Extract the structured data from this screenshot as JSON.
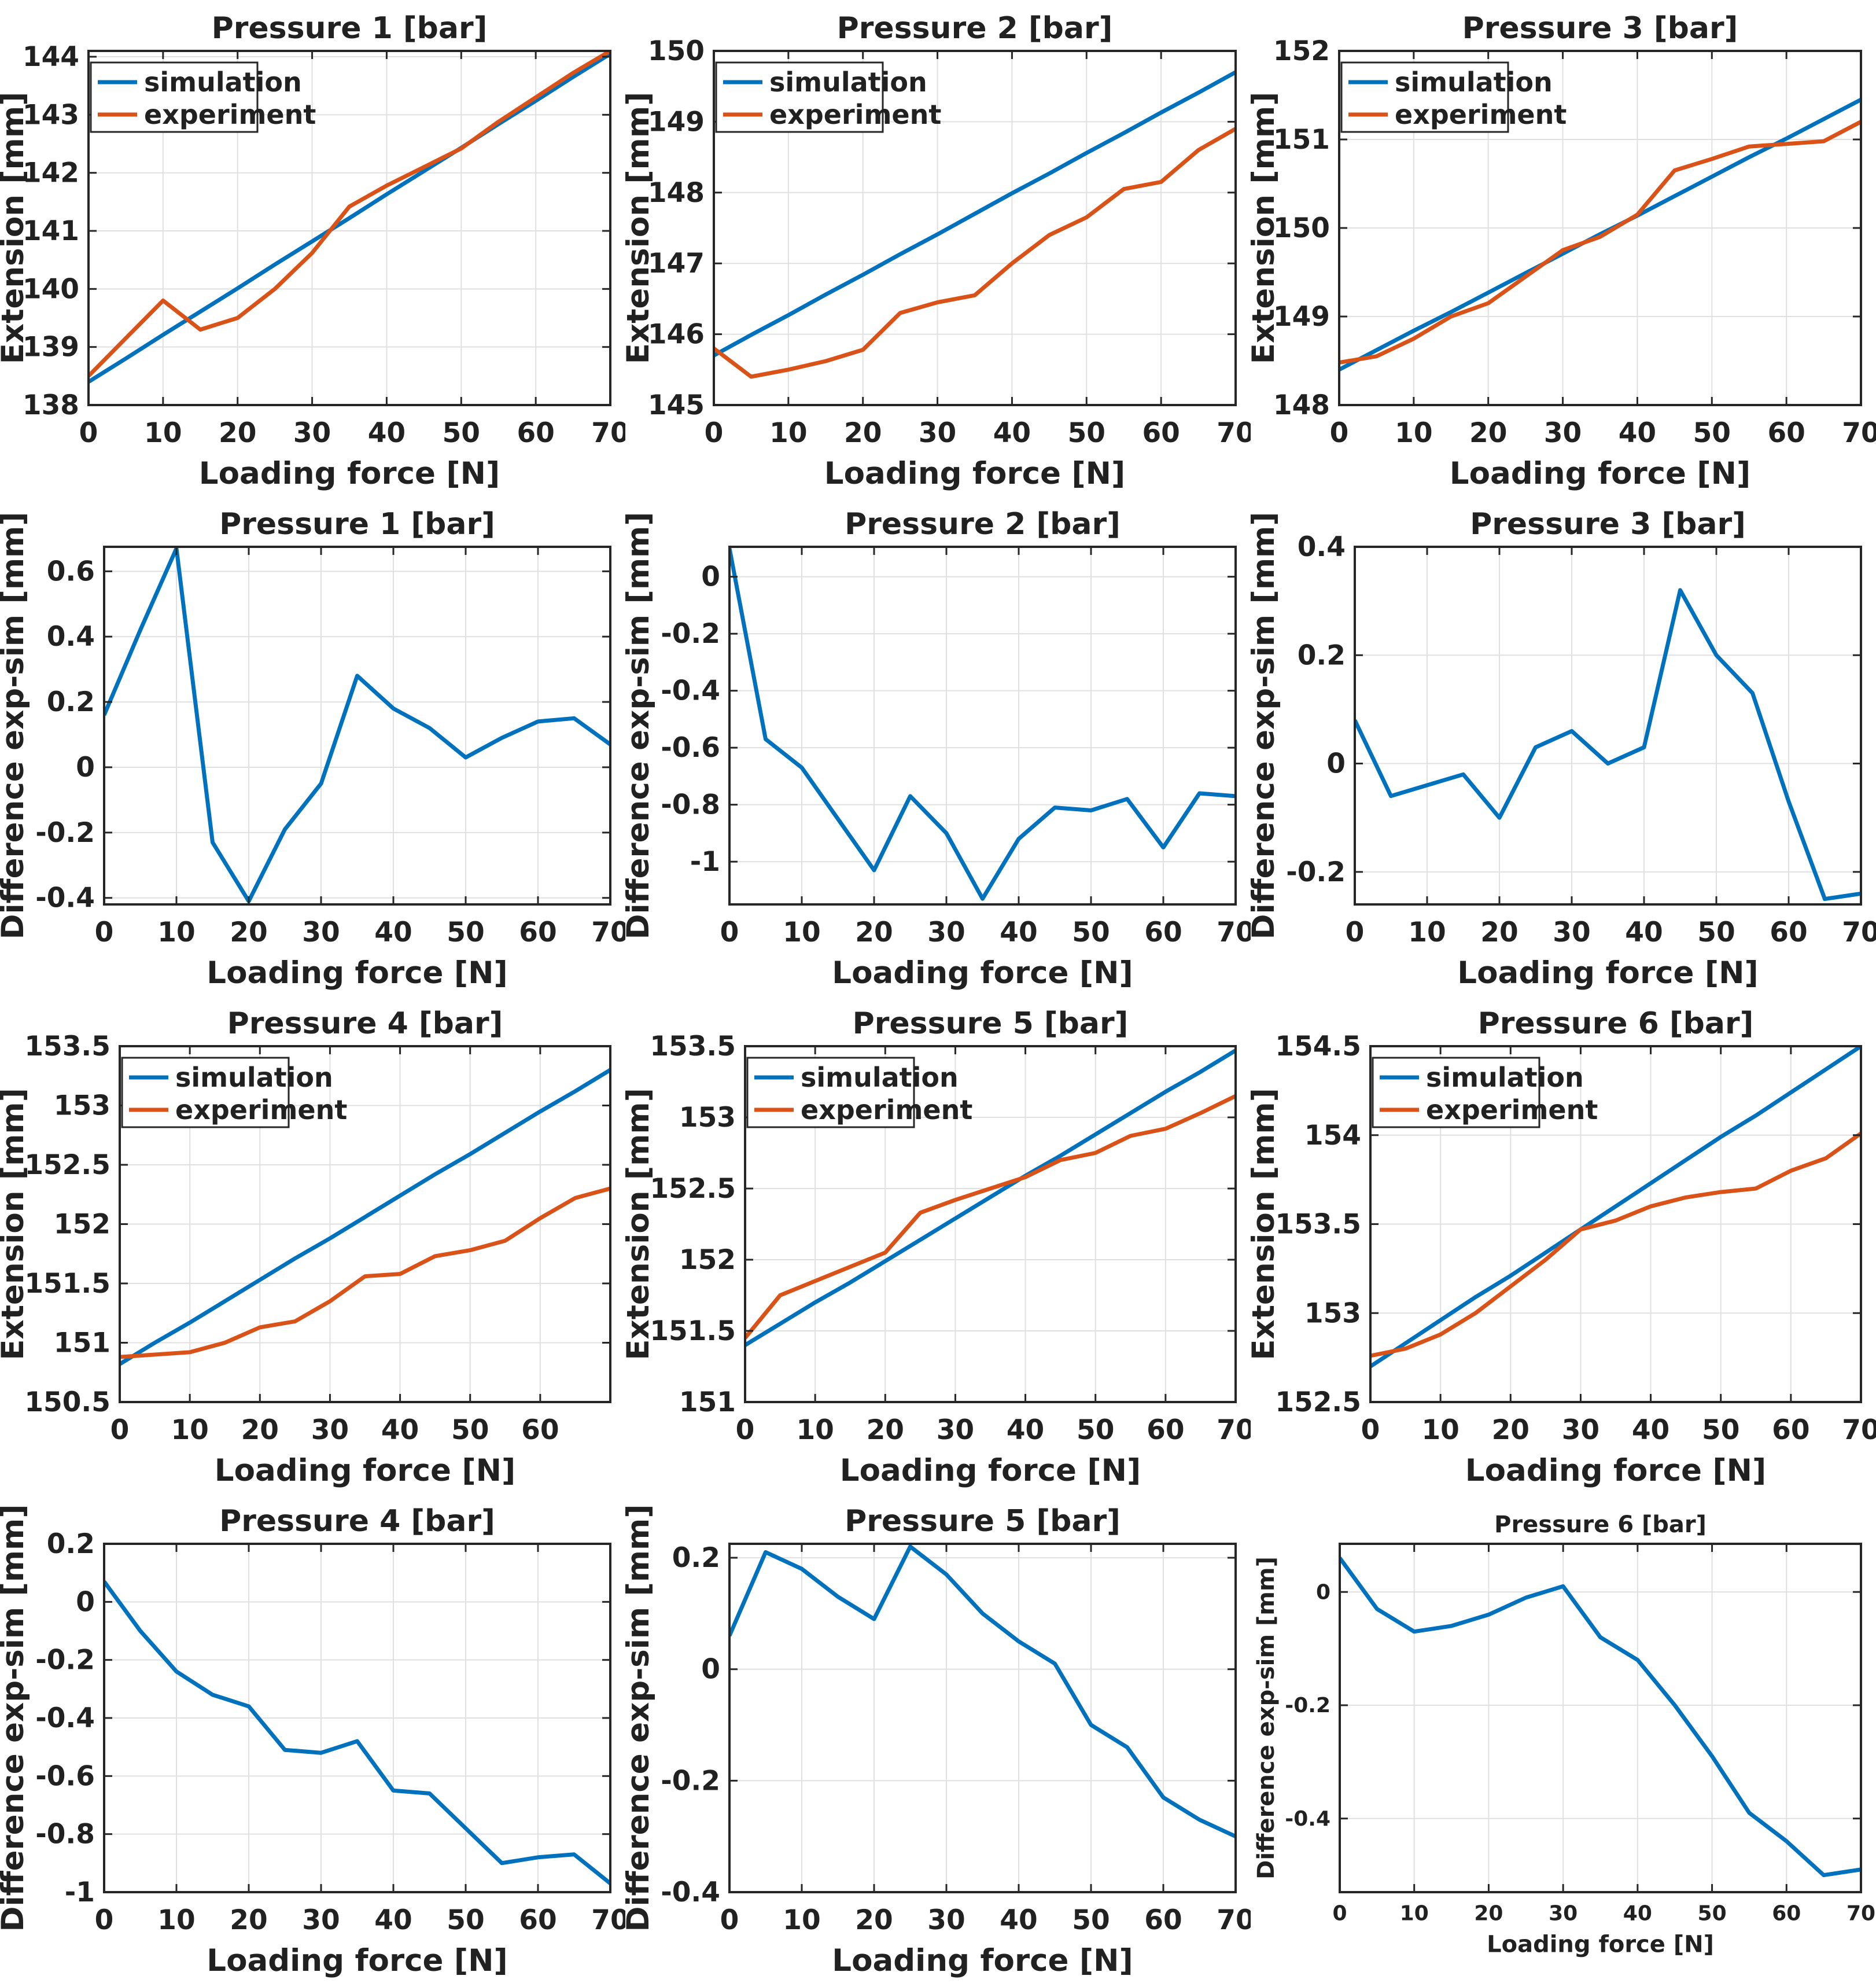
{
  "figure": {
    "background": "#ffffff",
    "colors": {
      "simulation": "#0072BD",
      "experiment": "#D95319",
      "grid": "#e0e0e0",
      "axis": "#262626",
      "text": "#212121"
    },
    "legend_labels": [
      "simulation",
      "experiment"
    ],
    "xlabel": "Loading force [N]",
    "extension_ylabel": "Extension [mm]",
    "difference_ylabel": "Difference exp-sim [mm]"
  },
  "chart_data": [
    {
      "type": "line",
      "title": "Pressure 1 [bar]",
      "xlabel": "Loading force [N]",
      "ylabel": "Extension [mm]",
      "xlim": [
        0,
        70
      ],
      "ylim": [
        138,
        144.1
      ],
      "xticks": [
        0,
        10,
        20,
        30,
        40,
        50,
        60,
        70
      ],
      "yticks": [
        138,
        139,
        140,
        141,
        142,
        143,
        144
      ],
      "x": [
        0,
        5,
        10,
        15,
        20,
        25,
        30,
        35,
        40,
        45,
        50,
        55,
        60,
        65,
        70
      ],
      "legend": true,
      "grid": true,
      "series": [
        {
          "name": "simulation",
          "color": "#0072BD",
          "values": [
            138.4,
            138.8,
            139.21,
            139.61,
            140.01,
            140.42,
            140.82,
            141.22,
            141.63,
            142.03,
            142.43,
            142.84,
            143.24,
            143.65,
            144.05
          ]
        },
        {
          "name": "experiment",
          "color": "#D95319",
          "values": [
            138.5,
            139.15,
            139.8,
            139.3,
            139.5,
            140.0,
            140.62,
            141.42,
            141.78,
            142.1,
            142.42,
            142.88,
            143.3,
            143.72,
            144.1
          ]
        }
      ]
    },
    {
      "type": "line",
      "title": "Pressure 2 [bar]",
      "xlabel": "Loading force [N]",
      "ylabel": "Extension [mm]",
      "xlim": [
        0,
        70
      ],
      "ylim": [
        145,
        150
      ],
      "xticks": [
        0,
        10,
        20,
        30,
        40,
        50,
        60,
        70
      ],
      "yticks": [
        145,
        146,
        147,
        148,
        149,
        150
      ],
      "x": [
        0,
        5,
        10,
        15,
        20,
        25,
        30,
        35,
        40,
        45,
        50,
        55,
        60,
        65,
        70
      ],
      "legend": true,
      "grid": true,
      "series": [
        {
          "name": "simulation",
          "color": "#0072BD",
          "values": [
            145.7,
            145.99,
            146.27,
            146.56,
            146.84,
            147.13,
            147.41,
            147.7,
            147.99,
            148.27,
            148.56,
            148.84,
            149.13,
            149.41,
            149.7
          ]
        },
        {
          "name": "experiment",
          "color": "#D95319",
          "values": [
            145.8,
            145.4,
            145.5,
            145.62,
            145.78,
            146.3,
            146.45,
            146.55,
            147.0,
            147.4,
            147.65,
            148.05,
            148.15,
            148.6,
            148.9
          ]
        }
      ]
    },
    {
      "type": "line",
      "title": "Pressure 3 [bar]",
      "xlabel": "Loading force [N]",
      "ylabel": "Extension [mm]",
      "xlim": [
        0,
        70
      ],
      "ylim": [
        148,
        152
      ],
      "xticks": [
        0,
        10,
        20,
        30,
        40,
        50,
        60,
        70
      ],
      "yticks": [
        148,
        149,
        150,
        151,
        152
      ],
      "x": [
        0,
        5,
        10,
        15,
        20,
        25,
        30,
        35,
        40,
        45,
        50,
        55,
        60,
        65,
        70
      ],
      "legend": true,
      "grid": true,
      "series": [
        {
          "name": "simulation",
          "color": "#0072BD",
          "values": [
            148.4,
            148.62,
            148.84,
            149.05,
            149.27,
            149.49,
            149.71,
            149.93,
            150.14,
            150.36,
            150.58,
            150.8,
            151.01,
            151.23,
            151.45
          ]
        },
        {
          "name": "experiment",
          "color": "#D95319",
          "values": [
            148.48,
            148.55,
            148.75,
            149.0,
            149.15,
            149.45,
            149.75,
            149.9,
            150.15,
            150.65,
            150.78,
            150.92,
            150.95,
            150.98,
            151.2
          ]
        }
      ]
    },
    {
      "type": "line",
      "title": "Pressure 1 [bar]",
      "xlabel": "Loading force [N]",
      "ylabel": "Difference exp-sim [mm]",
      "xlim": [
        0,
        70
      ],
      "ylim": [
        -0.42,
        0.675
      ],
      "xticks": [
        0,
        10,
        20,
        30,
        40,
        50,
        60,
        70
      ],
      "yticks": [
        -0.4,
        -0.2,
        0,
        0.2,
        0.4,
        0.6
      ],
      "x": [
        0,
        5,
        10,
        15,
        20,
        25,
        30,
        35,
        40,
        45,
        50,
        55,
        60,
        65,
        70
      ],
      "legend": false,
      "grid": true,
      "series": [
        {
          "name": "difference",
          "color": "#0072BD",
          "values": [
            0.16,
            0.42,
            0.67,
            -0.23,
            -0.41,
            -0.19,
            -0.05,
            0.28,
            0.18,
            0.12,
            0.03,
            0.09,
            0.14,
            0.15,
            0.07
          ]
        }
      ]
    },
    {
      "type": "line",
      "title": "Pressure 2 [bar]",
      "xlabel": "Loading force [N]",
      "ylabel": "Difference exp-sim [mm]",
      "xlim": [
        0,
        70
      ],
      "ylim": [
        -1.15,
        0.105
      ],
      "xticks": [
        0,
        10,
        20,
        30,
        40,
        50,
        60,
        70
      ],
      "yticks": [
        -1,
        -0.8,
        -0.6,
        -0.4,
        -0.2,
        0
      ],
      "x": [
        0,
        5,
        10,
        15,
        20,
        25,
        30,
        35,
        40,
        45,
        50,
        55,
        60,
        65,
        70
      ],
      "legend": false,
      "grid": true,
      "series": [
        {
          "name": "difference",
          "color": "#0072BD",
          "values": [
            0.1,
            -0.57,
            -0.67,
            -0.85,
            -1.03,
            -0.77,
            -0.9,
            -1.13,
            -0.92,
            -0.81,
            -0.82,
            -0.78,
            -0.95,
            -0.76,
            -0.77
          ]
        }
      ]
    },
    {
      "type": "line",
      "title": "Pressure 3 [bar]",
      "xlabel": "Loading force [N]",
      "ylabel": "Difference exp-sim [mm]",
      "xlim": [
        0,
        70
      ],
      "ylim": [
        -0.26,
        0.4
      ],
      "xticks": [
        0,
        10,
        20,
        30,
        40,
        50,
        60,
        70
      ],
      "yticks": [
        -0.2,
        0,
        0.2,
        0.4
      ],
      "x": [
        0,
        5,
        10,
        15,
        20,
        25,
        30,
        35,
        40,
        45,
        50,
        55,
        60,
        65,
        70
      ],
      "legend": false,
      "grid": true,
      "series": [
        {
          "name": "difference",
          "color": "#0072BD",
          "values": [
            0.08,
            -0.06,
            -0.04,
            -0.02,
            -0.1,
            0.03,
            0.06,
            0.0,
            0.03,
            0.32,
            0.2,
            0.13,
            -0.07,
            -0.25,
            -0.24
          ]
        }
      ]
    },
    {
      "type": "line",
      "title": "Pressure 4 [bar]",
      "xlabel": "Loading force [N]",
      "ylabel": "Extension [mm]",
      "xlim": [
        0,
        70
      ],
      "ylim": [
        150.5,
        153.5
      ],
      "xticks": [
        0,
        10,
        20,
        30,
        40,
        50,
        60
      ],
      "yticks": [
        150.5,
        151,
        151.5,
        152,
        152.5,
        153,
        153.5
      ],
      "x": [
        0,
        5,
        10,
        15,
        20,
        25,
        30,
        35,
        40,
        45,
        50,
        55,
        60,
        65,
        70
      ],
      "legend": true,
      "grid": true,
      "series": [
        {
          "name": "simulation",
          "color": "#0072BD",
          "values": [
            150.82,
            151.0,
            151.17,
            151.35,
            151.53,
            151.71,
            151.88,
            152.06,
            152.24,
            152.42,
            152.59,
            152.77,
            152.95,
            153.12,
            153.3
          ]
        },
        {
          "name": "experiment",
          "color": "#D95319",
          "values": [
            150.88,
            150.9,
            150.92,
            151.0,
            151.13,
            151.18,
            151.35,
            151.56,
            151.58,
            151.73,
            151.78,
            151.86,
            152.05,
            152.22,
            152.3
          ]
        }
      ]
    },
    {
      "type": "line",
      "title": "Pressure 5 [bar]",
      "xlabel": "Loading force [N]",
      "ylabel": "Extension [mm]",
      "xlim": [
        0,
        70
      ],
      "ylim": [
        151,
        153.5
      ],
      "xticks": [
        0,
        10,
        20,
        30,
        40,
        50,
        60,
        70
      ],
      "yticks": [
        151,
        151.5,
        152,
        152.5,
        153,
        153.5
      ],
      "x": [
        0,
        5,
        10,
        15,
        20,
        25,
        30,
        35,
        40,
        45,
        50,
        55,
        60,
        65,
        70
      ],
      "legend": true,
      "grid": true,
      "series": [
        {
          "name": "simulation",
          "color": "#0072BD",
          "values": [
            151.4,
            151.55,
            151.7,
            151.84,
            151.99,
            152.14,
            152.29,
            152.44,
            152.59,
            152.73,
            152.88,
            153.03,
            153.18,
            153.32,
            153.47
          ]
        },
        {
          "name": "experiment",
          "color": "#D95319",
          "values": [
            151.45,
            151.75,
            151.85,
            151.95,
            152.05,
            152.33,
            152.42,
            152.5,
            152.58,
            152.7,
            152.75,
            152.87,
            152.92,
            153.03,
            153.15
          ]
        }
      ]
    },
    {
      "type": "line",
      "title": "Pressure 6 [bar]",
      "xlabel": "Loading force [N]",
      "ylabel": "Extension [mm]",
      "xlim": [
        0,
        70
      ],
      "ylim": [
        152.5,
        154.5
      ],
      "xticks": [
        0,
        10,
        20,
        30,
        40,
        50,
        60,
        70
      ],
      "yticks": [
        152.5,
        153,
        153.5,
        154,
        154.5
      ],
      "x": [
        0,
        5,
        10,
        15,
        20,
        25,
        30,
        35,
        40,
        45,
        50,
        55,
        60,
        65,
        70
      ],
      "legend": true,
      "grid": true,
      "series": [
        {
          "name": "simulation",
          "color": "#0072BD",
          "values": [
            152.7,
            152.83,
            152.96,
            153.09,
            153.21,
            153.34,
            153.47,
            153.6,
            153.73,
            153.86,
            153.99,
            154.11,
            154.24,
            154.37,
            154.5
          ]
        },
        {
          "name": "experiment",
          "color": "#D95319",
          "values": [
            152.76,
            152.8,
            152.88,
            153.0,
            153.15,
            153.3,
            153.47,
            153.52,
            153.6,
            153.65,
            153.68,
            153.7,
            153.8,
            153.87,
            154.01
          ]
        }
      ]
    },
    {
      "type": "line",
      "title": "Pressure 4 [bar]",
      "xlabel": "Loading force [N]",
      "ylabel": "Difference exp-sim [mm]",
      "xlim": [
        0,
        70
      ],
      "ylim": [
        -1,
        0.2
      ],
      "xticks": [
        0,
        10,
        20,
        30,
        40,
        50,
        60,
        70
      ],
      "yticks": [
        -1,
        -0.8,
        -0.6,
        -0.4,
        -0.2,
        0,
        0.2
      ],
      "x": [
        0,
        5,
        10,
        15,
        20,
        25,
        30,
        35,
        40,
        45,
        50,
        55,
        60,
        65,
        70
      ],
      "legend": false,
      "grid": true,
      "series": [
        {
          "name": "difference",
          "color": "#0072BD",
          "values": [
            0.07,
            -0.1,
            -0.24,
            -0.32,
            -0.36,
            -0.51,
            -0.52,
            -0.48,
            -0.65,
            -0.66,
            -0.78,
            -0.9,
            -0.88,
            -0.87,
            -0.97
          ]
        }
      ]
    },
    {
      "type": "line",
      "title": "Pressure 5 [bar]",
      "xlabel": "Loading force [N]",
      "ylabel": "Difference exp-sim [mm]",
      "xlim": [
        0,
        70
      ],
      "ylim": [
        -0.4,
        0.225
      ],
      "xticks": [
        0,
        10,
        20,
        30,
        40,
        50,
        60,
        70
      ],
      "yticks": [
        -0.4,
        -0.2,
        0,
        0.2
      ],
      "x": [
        0,
        5,
        10,
        15,
        20,
        25,
        30,
        35,
        40,
        45,
        50,
        55,
        60,
        65,
        70
      ],
      "legend": false,
      "grid": true,
      "series": [
        {
          "name": "difference",
          "color": "#0072BD",
          "values": [
            0.06,
            0.21,
            0.18,
            0.13,
            0.09,
            0.22,
            0.17,
            0.1,
            0.05,
            0.01,
            -0.1,
            -0.14,
            -0.23,
            -0.27,
            -0.3
          ]
        }
      ]
    },
    {
      "type": "line",
      "title": "Pressure 6 [bar]",
      "xlabel": "Loading force [N]",
      "ylabel": "Difference exp-sim [mm]",
      "xlim": [
        0,
        70
      ],
      "ylim": [
        -0.53,
        0.085
      ],
      "xticks": [
        0,
        10,
        20,
        30,
        40,
        50,
        60,
        70
      ],
      "yticks": [
        -0.4,
        -0.2,
        0
      ],
      "x": [
        0,
        5,
        10,
        15,
        20,
        25,
        30,
        35,
        40,
        45,
        50,
        55,
        60,
        65,
        70
      ],
      "legend": false,
      "grid": true,
      "small_font": true,
      "series": [
        {
          "name": "difference",
          "color": "#0072BD",
          "values": [
            0.06,
            -0.03,
            -0.07,
            -0.06,
            -0.04,
            -0.01,
            0.01,
            -0.08,
            -0.12,
            -0.2,
            -0.29,
            -0.39,
            -0.44,
            -0.5,
            -0.49
          ]
        }
      ]
    }
  ]
}
